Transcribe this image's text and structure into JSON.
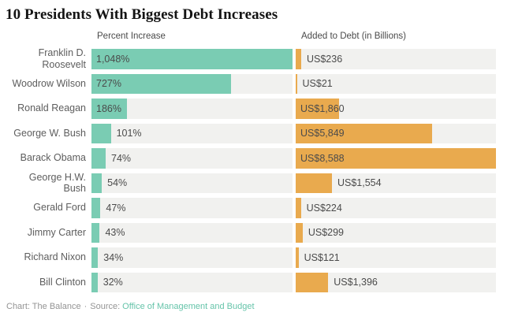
{
  "title": "10 Presidents With Biggest Debt Increases",
  "chart_data": {
    "type": "bar",
    "orientation": "horizontal",
    "grid": false,
    "legend_position": "column-headers",
    "categories": [
      "Franklin D. Roosevelt",
      "Woodrow Wilson",
      "Ronald Reagan",
      "George W. Bush",
      "Barack Obama",
      "George H.W. Bush",
      "Gerald Ford",
      "Jimmy Carter",
      "Richard Nixon",
      "Bill Clinton"
    ],
    "series": [
      {
        "name": "Percent Increase",
        "values": [
          1048,
          727,
          186,
          101,
          74,
          54,
          47,
          43,
          34,
          32
        ],
        "labels": [
          "1,048%",
          "727%",
          "186%",
          "101%",
          "74%",
          "54%",
          "47%",
          "43%",
          "34%",
          "32%"
        ],
        "axis_max": 1048,
        "color": "#7accb3"
      },
      {
        "name": "Added to Debt (in Billions)",
        "values": [
          236,
          21,
          1860,
          5849,
          8588,
          1554,
          224,
          299,
          121,
          1396
        ],
        "labels": [
          "US$236",
          "US$21",
          "US$1,860",
          "US$5,849",
          "US$8,588",
          "US$1,554",
          "US$224",
          "US$299",
          "US$121",
          "US$1,396"
        ],
        "axis_max": 8588,
        "color": "#e9aa4e"
      }
    ],
    "track_color": "#f1f1ef"
  },
  "footer": {
    "attribution": "Chart: The Balance",
    "separator": "·",
    "source_label": "Source:",
    "source_name": "Office of Management and Budget",
    "source_link_color": "#66c4aa"
  },
  "colors": {
    "background": "#ffffff",
    "title_text": "#141414",
    "header_text": "#4a4a4a",
    "category_text": "#5d5d5d",
    "value_text": "#4b4b4b",
    "footer_text": "#949494"
  }
}
